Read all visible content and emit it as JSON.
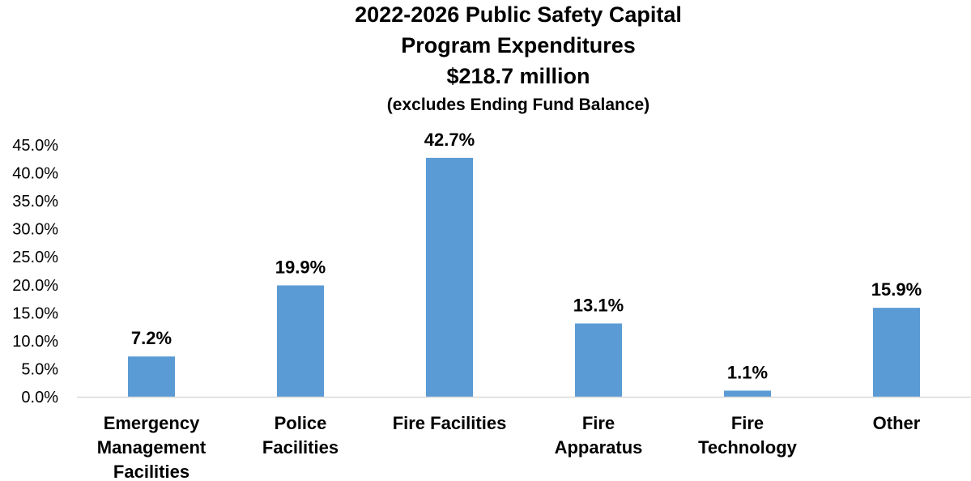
{
  "chart_data": {
    "type": "bar",
    "title_lines": [
      "2022-2026 Public Safety Capital",
      "Program Expenditures",
      "$218.7 million"
    ],
    "subtitle": "(excludes Ending Fund Balance)",
    "categories": [
      [
        "Emergency",
        "Management",
        "Facilities"
      ],
      [
        "Police",
        "Facilities"
      ],
      [
        "Fire Facilities"
      ],
      [
        "Fire",
        "Apparatus"
      ],
      [
        "Fire",
        "Technology"
      ],
      [
        "Other"
      ]
    ],
    "values": [
      7.2,
      19.9,
      42.7,
      13.1,
      1.1,
      15.9
    ],
    "data_labels": [
      "7.2%",
      "19.9%",
      "42.7%",
      "13.1%",
      "1.1%",
      "15.9%"
    ],
    "yticks": [
      "0.0%",
      "5.0%",
      "10.0%",
      "15.0%",
      "20.0%",
      "25.0%",
      "30.0%",
      "35.0%",
      "40.0%",
      "45.0%"
    ],
    "ylim": [
      0,
      45
    ],
    "ytick_step": 5,
    "grid": false,
    "legend": "none",
    "bar_color": "#5B9BD5",
    "axis_color": "#d9d9d9"
  }
}
